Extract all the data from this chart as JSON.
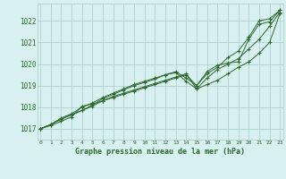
{
  "x": [
    0,
    1,
    2,
    3,
    4,
    5,
    6,
    7,
    8,
    9,
    10,
    11,
    12,
    13,
    14,
    15,
    16,
    17,
    18,
    19,
    20,
    21,
    22,
    23
  ],
  "line1": [
    1017.0,
    1017.2,
    1017.5,
    1017.7,
    1018.0,
    1018.2,
    1018.45,
    1018.65,
    1018.85,
    1019.05,
    1019.2,
    1019.35,
    1019.5,
    1019.6,
    1019.2,
    1018.85,
    1019.05,
    1019.25,
    1019.55,
    1019.85,
    1020.1,
    1020.5,
    1021.0,
    1022.35
  ],
  "line2": [
    1017.0,
    1017.2,
    1017.45,
    1017.65,
    1017.85,
    1018.05,
    1018.3,
    1018.5,
    1018.65,
    1018.8,
    1018.95,
    1019.1,
    1019.25,
    1019.4,
    1019.55,
    1018.85,
    1019.35,
    1019.75,
    1020.0,
    1020.25,
    1020.7,
    1021.15,
    1021.75,
    1022.4
  ],
  "line3": [
    1017.0,
    1017.15,
    1017.35,
    1017.55,
    1018.05,
    1018.15,
    1018.3,
    1018.45,
    1018.6,
    1018.75,
    1018.9,
    1019.05,
    1019.2,
    1019.35,
    1019.5,
    1019.0,
    1019.65,
    1019.95,
    1020.05,
    1020.1,
    1021.15,
    1021.85,
    1021.95,
    1022.5
  ],
  "line4": [
    1017.0,
    1017.2,
    1017.45,
    1017.65,
    1017.85,
    1018.1,
    1018.4,
    1018.6,
    1018.8,
    1019.0,
    1019.15,
    1019.3,
    1019.5,
    1019.65,
    1019.35,
    1019.0,
    1019.55,
    1019.85,
    1020.3,
    1020.6,
    1021.25,
    1022.0,
    1022.1,
    1022.5
  ],
  "line_color": "#2d6a2d",
  "bg_color": "#d8f0f0",
  "grid_color": "#aacaca",
  "xlabel": "Graphe pression niveau de la mer (hPa)",
  "ylim": [
    1016.5,
    1022.8
  ],
  "xlim": [
    -0.3,
    23.3
  ],
  "yticks": [
    1017,
    1018,
    1019,
    1020,
    1021,
    1022
  ],
  "xticks": [
    0,
    1,
    2,
    3,
    4,
    5,
    6,
    7,
    8,
    9,
    10,
    11,
    12,
    13,
    14,
    15,
    16,
    17,
    18,
    19,
    20,
    21,
    22,
    23
  ]
}
